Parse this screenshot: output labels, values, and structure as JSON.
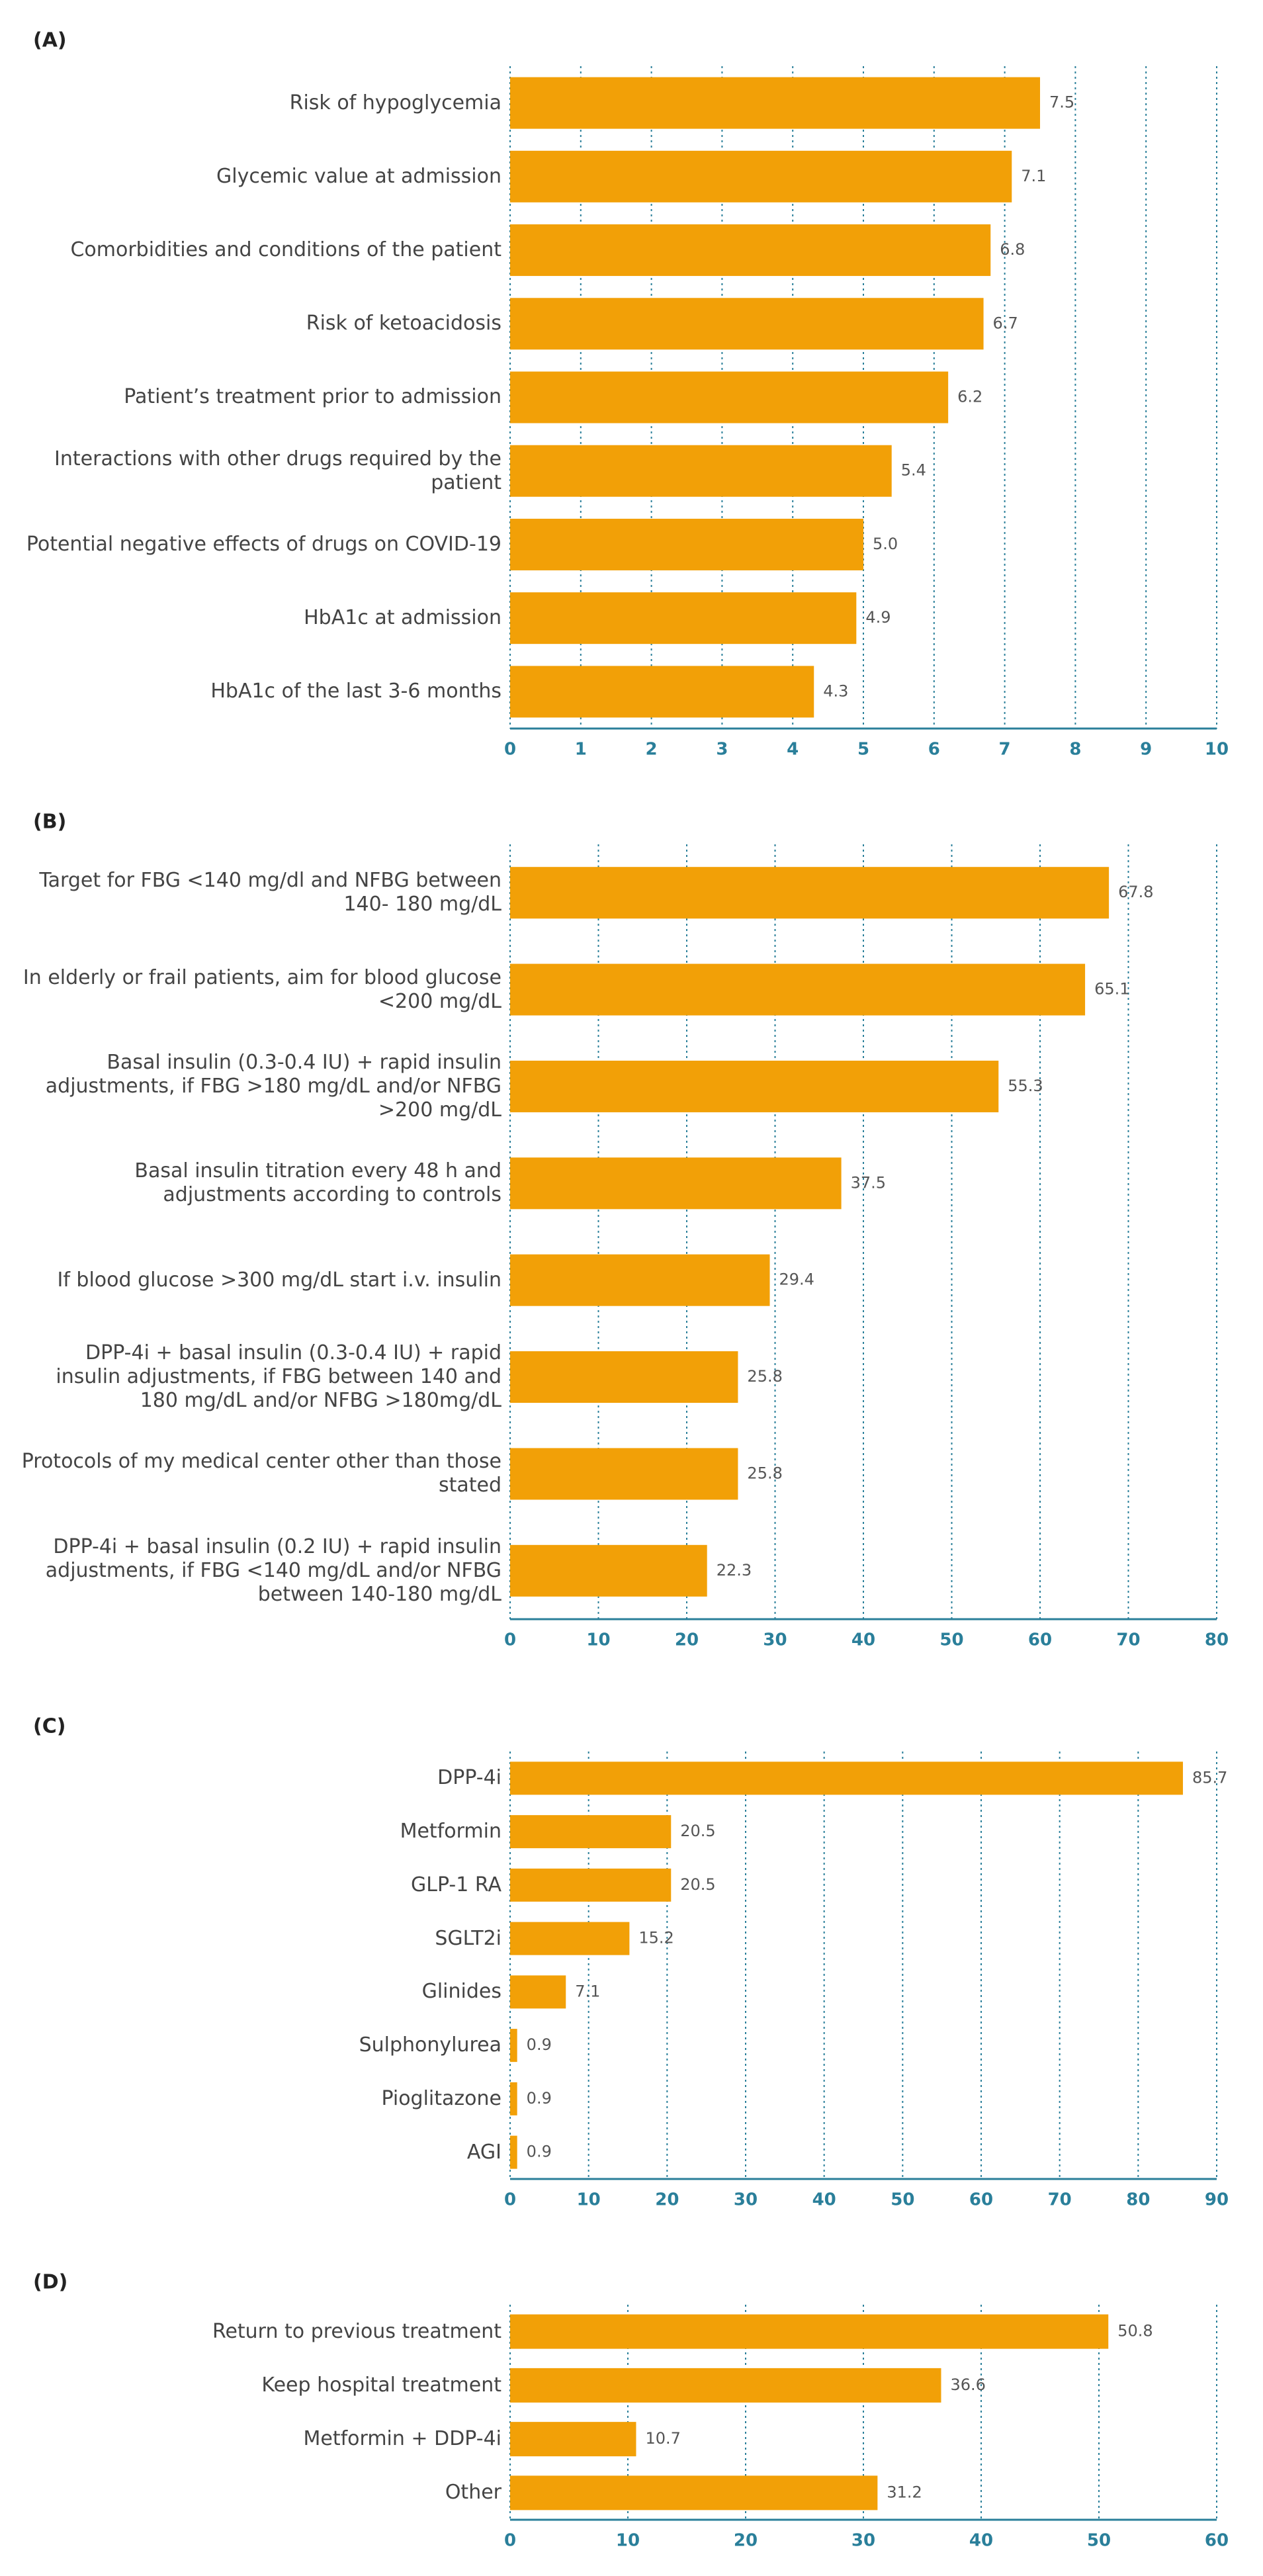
{
  "chart_data": [
    {
      "type": "bar",
      "orientation": "horizontal",
      "title": "(A)",
      "color": "#f2a007",
      "categories": [
        "Risk of hypoglycemia",
        "Glycemic value at admission",
        "Comorbidities and conditions of the patient",
        "Risk of ketoacidosis",
        "Patient’s treatment prior to admission",
        "Interactions with other drugs required by the patient",
        "Potential negative effects of drugs on COVID-19",
        "HbA1c at admission",
        "HbA1c of the last 3-6 months"
      ],
      "values": [
        7.5,
        7.1,
        6.8,
        6.7,
        6.2,
        5.4,
        5.0,
        4.9,
        4.3
      ],
      "value_labels": [
        "7.5",
        "7.1",
        "6.8",
        "6.7",
        "6.2",
        "5.4",
        "5.0",
        "4.9",
        "4.3"
      ],
      "xlim": [
        0,
        10
      ],
      "xticks": [
        0,
        1,
        2,
        3,
        4,
        5,
        6,
        7,
        8,
        9,
        10
      ],
      "grid": true
    },
    {
      "type": "bar",
      "orientation": "horizontal",
      "title": "(B)",
      "color": "#f2a007",
      "categories": [
        "Target for FBG <140 mg/dl and NFBG between 140- 180 mg/dL",
        "In elderly or frail patients, aim for blood glucose <200 mg/dL",
        "Basal insulin (0.3-0.4 IU) + rapid insulin adjustments, if FBG >180 mg/dL and/or NFBG >200 mg/dL",
        "Basal insulin titration every 48 h and adjustments according to controls",
        "If blood glucose >300 mg/dL start i.v. insulin",
        "DPP-4i + basal insulin (0.3-0.4 IU) + rapid insulin adjustments, if FBG between 140 and 180 mg/dL and/or NFBG >180mg/dL",
        "Protocols of my medical center other than those stated",
        "DPP-4i + basal insulin (0.2 IU) + rapid insulin adjustments, if FBG <140 mg/dL and/or NFBG between 140-180 mg/dL"
      ],
      "values": [
        67.8,
        65.1,
        55.3,
        37.5,
        29.4,
        25.8,
        25.8,
        22.3
      ],
      "xlim": [
        0,
        80
      ],
      "xticks": [
        0,
        10,
        20,
        30,
        40,
        50,
        60,
        70,
        80
      ],
      "grid": true
    },
    {
      "type": "bar",
      "orientation": "horizontal",
      "title": "(C)",
      "color": "#f2a007",
      "categories": [
        "DPP-4i",
        "Metformin",
        "GLP-1 RA",
        "SGLT2i",
        "Glinides",
        "Sulphonylurea",
        "Pioglitazone",
        "AGI"
      ],
      "values": [
        85.7,
        20.5,
        20.5,
        15.2,
        7.1,
        0.9,
        0.9,
        0.9
      ],
      "xlim": [
        0,
        90
      ],
      "xticks": [
        0,
        10,
        20,
        30,
        40,
        50,
        60,
        70,
        80,
        90
      ],
      "grid": true
    },
    {
      "type": "bar",
      "orientation": "horizontal",
      "title": "(D)",
      "color": "#f2a007",
      "categories": [
        "Return to previous treatment",
        "Keep hospital treatment",
        "Metformin + DDP-4i",
        "Other"
      ],
      "values": [
        50.8,
        36.6,
        10.7,
        31.2
      ],
      "xlim": [
        0,
        60
      ],
      "xticks": [
        0,
        10,
        20,
        30,
        40,
        50,
        60
      ],
      "grid": true
    }
  ]
}
